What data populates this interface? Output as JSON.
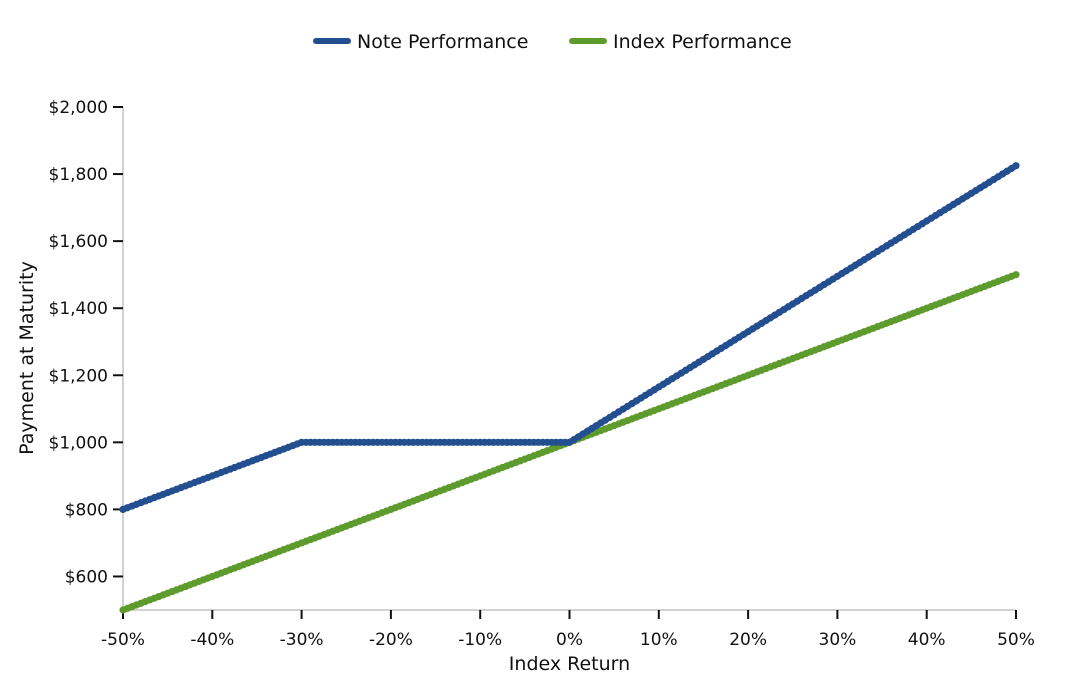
{
  "chart_data": {
    "type": "line",
    "title": "",
    "xlabel": "Index Return",
    "ylabel": "Payment at Maturity",
    "xlim": [
      -50,
      50
    ],
    "ylim": [
      500,
      2000
    ],
    "legend_position": "top-center",
    "grid": false,
    "x_ticks": [
      -50,
      -40,
      -30,
      -20,
      -10,
      0,
      10,
      20,
      30,
      40,
      50
    ],
    "x_tick_labels": [
      "-50%",
      "-40%",
      "-30%",
      "-20%",
      "-10%",
      "0%",
      "10%",
      "20%",
      "30%",
      "40%",
      "50%"
    ],
    "y_ticks": [
      600,
      800,
      1000,
      1200,
      1400,
      1600,
      1800,
      2000
    ],
    "y_tick_labels": [
      "$600",
      "$800",
      "$1,000",
      "$1,200",
      "$1,400",
      "$1,600",
      "$1,800",
      "$2,000"
    ],
    "series": [
      {
        "name": "Note Performance",
        "color": "#234e8f",
        "x": [
          -50,
          -30,
          0,
          50
        ],
        "y": [
          800,
          1000,
          1000,
          1825
        ]
      },
      {
        "name": "Index Performance",
        "color": "#5e9b2d",
        "x": [
          -50,
          50
        ],
        "y": [
          500,
          1500
        ]
      }
    ]
  }
}
